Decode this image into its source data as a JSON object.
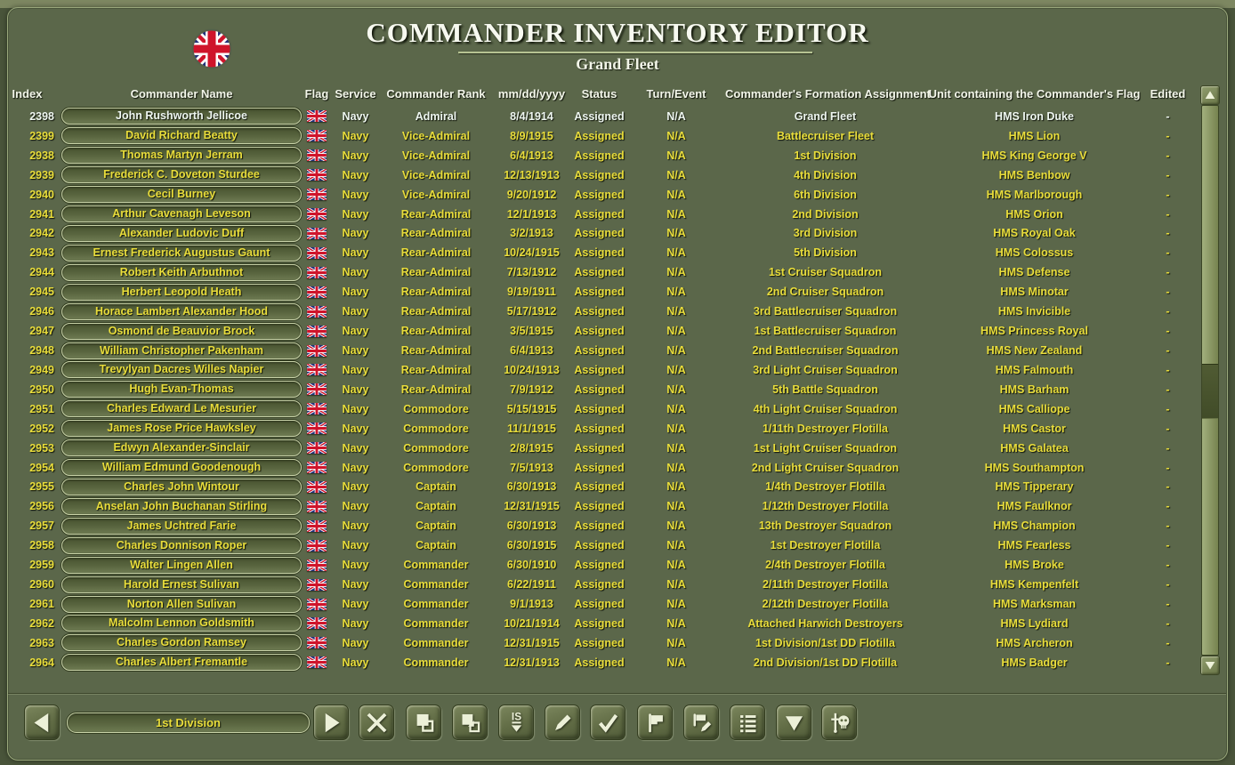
{
  "window": {
    "title": "COMMANDER INVENTORY EDITOR",
    "subtitle": "Grand Fleet",
    "nation_flag": "united-kingdom"
  },
  "table": {
    "columns": [
      "Index",
      "Commander Name",
      "Flag",
      "Service",
      "Commander Rank",
      "mm/dd/yyyy",
      "Status",
      "Turn/Event",
      "Commander's Formation Assignment",
      "Unit containing the Commander's Flag",
      "Edited"
    ],
    "rows": [
      {
        "index": "2398",
        "name": "John Rushworth Jellicoe",
        "flag": "UK",
        "service": "Navy",
        "rank": "Admiral",
        "date": "8/4/1914",
        "status": "Assigned",
        "turn_event": "N/A",
        "formation": "Grand Fleet",
        "unit": "HMS Iron Duke",
        "edited": "-",
        "selected": true
      },
      {
        "index": "2399",
        "name": "David Richard Beatty",
        "flag": "UK",
        "service": "Navy",
        "rank": "Vice-Admiral",
        "date": "8/9/1915",
        "status": "Assigned",
        "turn_event": "N/A",
        "formation": "Battlecruiser Fleet",
        "unit": "HMS Lion",
        "edited": "-",
        "selected": false
      },
      {
        "index": "2938",
        "name": "Thomas Martyn Jerram",
        "flag": "UK",
        "service": "Navy",
        "rank": "Vice-Admiral",
        "date": "6/4/1913",
        "status": "Assigned",
        "turn_event": "N/A",
        "formation": "1st Division",
        "unit": "HMS King George V",
        "edited": "-",
        "selected": false
      },
      {
        "index": "2939",
        "name": "Frederick C. Doveton Sturdee",
        "flag": "UK",
        "service": "Navy",
        "rank": "Vice-Admiral",
        "date": "12/13/1913",
        "status": "Assigned",
        "turn_event": "N/A",
        "formation": "4th Division",
        "unit": "HMS Benbow",
        "edited": "-",
        "selected": false
      },
      {
        "index": "2940",
        "name": "Cecil Burney",
        "flag": "UK",
        "service": "Navy",
        "rank": "Vice-Admiral",
        "date": "9/20/1912",
        "status": "Assigned",
        "turn_event": "N/A",
        "formation": "6th Division",
        "unit": "HMS Marlborough",
        "edited": "-",
        "selected": false
      },
      {
        "index": "2941",
        "name": "Arthur Cavenagh Leveson",
        "flag": "UK",
        "service": "Navy",
        "rank": "Rear-Admiral",
        "date": "12/1/1913",
        "status": "Assigned",
        "turn_event": "N/A",
        "formation": "2nd Division",
        "unit": "HMS Orion",
        "edited": "-",
        "selected": false
      },
      {
        "index": "2942",
        "name": "Alexander Ludovic Duff",
        "flag": "UK",
        "service": "Navy",
        "rank": "Rear-Admiral",
        "date": "3/2/1913",
        "status": "Assigned",
        "turn_event": "N/A",
        "formation": "3rd Division",
        "unit": "HMS Royal Oak",
        "edited": "-",
        "selected": false
      },
      {
        "index": "2943",
        "name": "Ernest Frederick Augustus Gaunt",
        "flag": "UK",
        "service": "Navy",
        "rank": "Rear-Admiral",
        "date": "10/24/1915",
        "status": "Assigned",
        "turn_event": "N/A",
        "formation": "5th Division",
        "unit": "HMS Colossus",
        "edited": "-",
        "selected": false
      },
      {
        "index": "2944",
        "name": "Robert Keith Arbuthnot",
        "flag": "UK",
        "service": "Navy",
        "rank": "Rear-Admiral",
        "date": "7/13/1912",
        "status": "Assigned",
        "turn_event": "N/A",
        "formation": "1st Cruiser Squadron",
        "unit": "HMS Defense",
        "edited": "-",
        "selected": false
      },
      {
        "index": "2945",
        "name": "Herbert Leopold Heath",
        "flag": "UK",
        "service": "Navy",
        "rank": "Rear-Admiral",
        "date": "9/19/1911",
        "status": "Assigned",
        "turn_event": "N/A",
        "formation": "2nd Cruiser Squadron",
        "unit": "HMS Minotar",
        "edited": "-",
        "selected": false
      },
      {
        "index": "2946",
        "name": "Horace Lambert Alexander Hood",
        "flag": "UK",
        "service": "Navy",
        "rank": "Rear-Admiral",
        "date": "5/17/1912",
        "status": "Assigned",
        "turn_event": "N/A",
        "formation": "3rd Battlecruiser Squadron",
        "unit": "HMS Invicible",
        "edited": "-",
        "selected": false
      },
      {
        "index": "2947",
        "name": "Osmond de Beauvior Brock",
        "flag": "UK",
        "service": "Navy",
        "rank": "Rear-Admiral",
        "date": "3/5/1915",
        "status": "Assigned",
        "turn_event": "N/A",
        "formation": "1st Battlecruiser Squadron",
        "unit": "HMS Princess Royal",
        "edited": "-",
        "selected": false
      },
      {
        "index": "2948",
        "name": "William Christopher Pakenham",
        "flag": "UK",
        "service": "Navy",
        "rank": "Rear-Admiral",
        "date": "6/4/1913",
        "status": "Assigned",
        "turn_event": "N/A",
        "formation": "2nd Battlecruiser Squadron",
        "unit": "HMS New Zealand",
        "edited": "-",
        "selected": false
      },
      {
        "index": "2949",
        "name": "Trevylyan Dacres Willes Napier",
        "flag": "UK",
        "service": "Navy",
        "rank": "Rear-Admiral",
        "date": "10/24/1913",
        "status": "Assigned",
        "turn_event": "N/A",
        "formation": "3rd Light Cruiser Squadron",
        "unit": "HMS Falmouth",
        "edited": "-",
        "selected": false
      },
      {
        "index": "2950",
        "name": "Hugh Evan-Thomas",
        "flag": "UK",
        "service": "Navy",
        "rank": "Rear-Admiral",
        "date": "7/9/1912",
        "status": "Assigned",
        "turn_event": "N/A",
        "formation": "5th Battle Squadron",
        "unit": "HMS Barham",
        "edited": "-",
        "selected": false
      },
      {
        "index": "2951",
        "name": "Charles Edward Le Mesurier",
        "flag": "UK",
        "service": "Navy",
        "rank": "Commodore",
        "date": "5/15/1915",
        "status": "Assigned",
        "turn_event": "N/A",
        "formation": "4th Light Cruiser Squadron",
        "unit": "HMS Calliope",
        "edited": "-",
        "selected": false
      },
      {
        "index": "2952",
        "name": "James Rose Price Hawksley",
        "flag": "UK",
        "service": "Navy",
        "rank": "Commodore",
        "date": "11/1/1915",
        "status": "Assigned",
        "turn_event": "N/A",
        "formation": "1/11th Destroyer Flotilla",
        "unit": "HMS Castor",
        "edited": "-",
        "selected": false
      },
      {
        "index": "2953",
        "name": "Edwyn Alexander-Sinclair",
        "flag": "UK",
        "service": "Navy",
        "rank": "Commodore",
        "date": "2/8/1915",
        "status": "Assigned",
        "turn_event": "N/A",
        "formation": "1st Light Cruiser Squadron",
        "unit": "HMS Galatea",
        "edited": "-",
        "selected": false
      },
      {
        "index": "2954",
        "name": "William Edmund Goodenough",
        "flag": "UK",
        "service": "Navy",
        "rank": "Commodore",
        "date": "7/5/1913",
        "status": "Assigned",
        "turn_event": "N/A",
        "formation": "2nd Light Cruiser Squadron",
        "unit": "HMS Southampton",
        "edited": "-",
        "selected": false
      },
      {
        "index": "2955",
        "name": "Charles John Wintour",
        "flag": "UK",
        "service": "Navy",
        "rank": "Captain",
        "date": "6/30/1913",
        "status": "Assigned",
        "turn_event": "N/A",
        "formation": "1/4th Destroyer Flotilla",
        "unit": "HMS Tipperary",
        "edited": "-",
        "selected": false
      },
      {
        "index": "2956",
        "name": "Anselan John Buchanan Stirling",
        "flag": "UK",
        "service": "Navy",
        "rank": "Captain",
        "date": "12/31/1915",
        "status": "Assigned",
        "turn_event": "N/A",
        "formation": "1/12th Destroyer Flotilla",
        "unit": "HMS Faulknor",
        "edited": "-",
        "selected": false
      },
      {
        "index": "2957",
        "name": "James Uchtred Farie",
        "flag": "UK",
        "service": "Navy",
        "rank": "Captain",
        "date": "6/30/1913",
        "status": "Assigned",
        "turn_event": "N/A",
        "formation": "13th Destroyer Squadron",
        "unit": "HMS Champion",
        "edited": "-",
        "selected": false
      },
      {
        "index": "2958",
        "name": "Charles Donnison Roper",
        "flag": "UK",
        "service": "Navy",
        "rank": "Captain",
        "date": "6/30/1915",
        "status": "Assigned",
        "turn_event": "N/A",
        "formation": "1st Destroyer Flotilla",
        "unit": "HMS Fearless",
        "edited": "-",
        "selected": false
      },
      {
        "index": "2959",
        "name": "Walter Lingen Allen",
        "flag": "UK",
        "service": "Navy",
        "rank": "Commander",
        "date": "6/30/1910",
        "status": "Assigned",
        "turn_event": "N/A",
        "formation": "2/4th Destroyer Flotilla",
        "unit": "HMS Broke",
        "edited": "-",
        "selected": false
      },
      {
        "index": "2960",
        "name": "Harold Ernest Sulivan",
        "flag": "UK",
        "service": "Navy",
        "rank": "Commander",
        "date": "6/22/1911",
        "status": "Assigned",
        "turn_event": "N/A",
        "formation": "2/11th Destroyer Flotilla",
        "unit": "HMS Kempenfelt",
        "edited": "-",
        "selected": false
      },
      {
        "index": "2961",
        "name": "Norton Allen Sulivan",
        "flag": "UK",
        "service": "Navy",
        "rank": "Commander",
        "date": "9/1/1913",
        "status": "Assigned",
        "turn_event": "N/A",
        "formation": "2/12th Destroyer Flotilla",
        "unit": "HMS Marksman",
        "edited": "-",
        "selected": false
      },
      {
        "index": "2962",
        "name": "Malcolm Lennon Goldsmith",
        "flag": "UK",
        "service": "Navy",
        "rank": "Commander",
        "date": "10/21/1914",
        "status": "Assigned",
        "turn_event": "N/A",
        "formation": "Attached Harwich Destroyers",
        "unit": "HMS Lydiard",
        "edited": "-",
        "selected": false
      },
      {
        "index": "2963",
        "name": "Charles Gordon Ramsey",
        "flag": "UK",
        "service": "Navy",
        "rank": "Commander",
        "date": "12/31/1915",
        "status": "Assigned",
        "turn_event": "N/A",
        "formation": "1st Division/1st DD Flotilla",
        "unit": "HMS Archeron",
        "edited": "-",
        "selected": false
      },
      {
        "index": "2964",
        "name": "Charles Albert Fremantle",
        "flag": "UK",
        "service": "Navy",
        "rank": "Commander",
        "date": "12/31/1913",
        "status": "Assigned",
        "turn_event": "N/A",
        "formation": "2nd Division/1st DD Flotilla",
        "unit": "HMS Badger",
        "edited": "-",
        "selected": false
      }
    ]
  },
  "toolbar": {
    "selection_label": "1st Division",
    "prev_button": {
      "icon": "arrow-left"
    },
    "next_button": {
      "icon": "arrow-right"
    },
    "action_buttons": [
      {
        "name": "delete-commander-button",
        "icon": "x-cross"
      },
      {
        "name": "copy-commander-button",
        "icon": "copy"
      },
      {
        "name": "paste-commander-button",
        "icon": "paste"
      },
      {
        "name": "insert-selection-button",
        "icon": "is-down",
        "label": "IS"
      },
      {
        "name": "edit-commander-button",
        "icon": "pencil"
      },
      {
        "name": "confirm-button",
        "icon": "check"
      },
      {
        "name": "flag-assign-button",
        "icon": "flag"
      },
      {
        "name": "flag-edit-button",
        "icon": "flag-pencil"
      },
      {
        "name": "roster-list-button",
        "icon": "list"
      },
      {
        "name": "move-down-button",
        "icon": "triangle-down"
      },
      {
        "name": "kill-commander-button",
        "icon": "skull-sword"
      }
    ]
  },
  "colors": {
    "panel_background": "#5b674a",
    "frame_edge": "#49543a",
    "top_edge_highlight": "#7d8761",
    "header_text": "#f3f6ea",
    "row_text_yellow": "#e9dd3b",
    "selected_row_text": "#eef6f0",
    "pill_border": "#c8d2a8",
    "title_underline": "#b6c392",
    "button_glyph": "#ecf0d8",
    "flag_navy": "#23317a",
    "flag_red": "#cf142b",
    "flag_white": "#ffffff"
  }
}
